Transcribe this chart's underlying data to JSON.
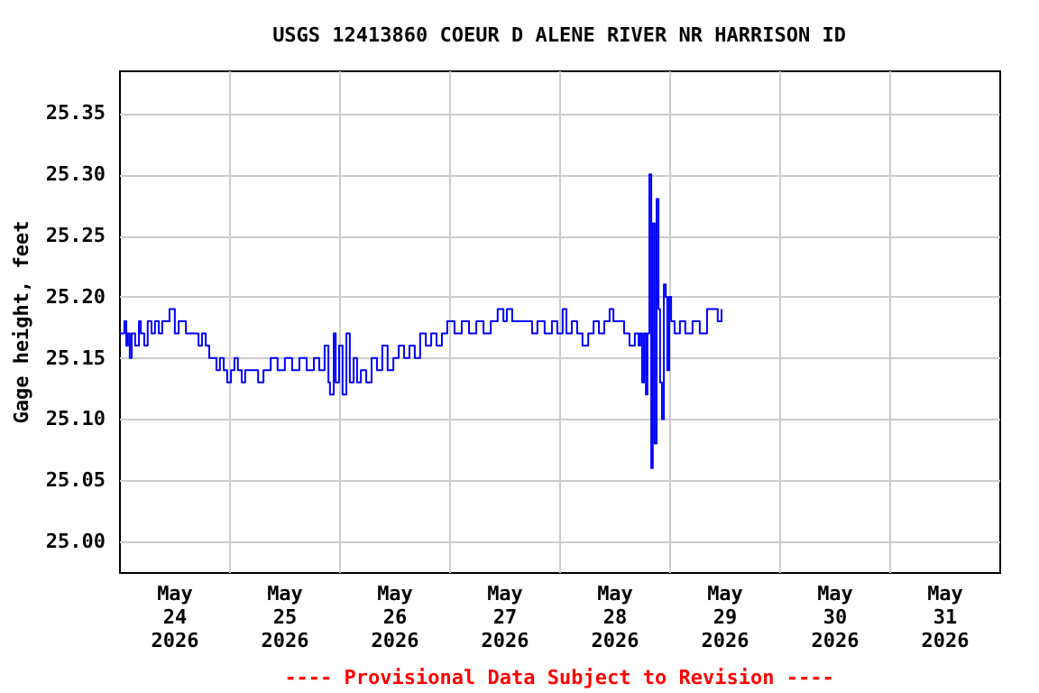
{
  "chart_data": {
    "type": "step",
    "title": "USGS 12413860 COEUR D ALENE RIVER NR HARRISON ID",
    "ylabel": "Gage height, feet",
    "annotations": [
      "---- Provisional Data Subject to Revision ----"
    ],
    "xlim": [
      "2026-05-24T00:00",
      "2026-06-01T00:00"
    ],
    "xticks": [
      {
        "value": "2026-05-24T12:00",
        "label": "May 24 2026"
      },
      {
        "value": "2026-05-25T00:00",
        "label": null
      },
      {
        "value": "2026-05-25T12:00",
        "label": "May 25 2026"
      },
      {
        "value": "2026-05-26T00:00",
        "label": null
      },
      {
        "value": "2026-05-26T12:00",
        "label": "May 26 2026"
      },
      {
        "value": "2026-05-27T00:00",
        "label": null
      },
      {
        "value": "2026-05-27T12:00",
        "label": "May 27 2026"
      },
      {
        "value": "2026-05-28T00:00",
        "label": null
      },
      {
        "value": "2026-05-28T12:00",
        "label": "May 28 2026"
      },
      {
        "value": "2026-05-29T00:00",
        "label": null
      },
      {
        "value": "2026-05-29T12:00",
        "label": "May 29 2026"
      },
      {
        "value": "2026-05-30T00:00",
        "label": null
      },
      {
        "value": "2026-05-30T12:00",
        "label": "May 30 2026"
      },
      {
        "value": "2026-05-31T00:00",
        "label": null
      },
      {
        "value": "2026-05-31T12:00",
        "label": "May 31 2026"
      }
    ],
    "ylim": [
      24.975,
      25.385
    ],
    "yticks": [
      {
        "value": 25,
        "label": "25.00"
      },
      {
        "value": 25.05,
        "label": "25.05"
      },
      {
        "value": 25.1,
        "label": "25.10"
      },
      {
        "value": 25.15,
        "label": "25.15"
      },
      {
        "value": 25.2,
        "label": "25.20"
      },
      {
        "value": 25.25,
        "label": "25.25"
      },
      {
        "value": 25.3,
        "label": "25.30"
      },
      {
        "value": 25.35,
        "label": "25.35"
      }
    ],
    "grid": true,
    "series": [
      {
        "color": "#0000ff",
        "x": [
          "2026-05-24T00:00",
          "2026-05-24T00:45",
          "2026-05-24T01:10",
          "2026-05-24T01:35",
          "2026-05-24T01:55",
          "2026-05-24T02:20",
          "2026-05-24T02:45",
          "2026-05-24T03:30",
          "2026-05-24T04:20",
          "2026-05-24T04:45",
          "2026-05-24T05:30",
          "2026-05-24T06:15",
          "2026-05-24T07:05",
          "2026-05-24T07:50",
          "2026-05-24T08:40",
          "2026-05-24T09:25",
          "2026-05-24T10:15",
          "2026-05-24T11:00",
          "2026-05-24T11:50",
          "2026-05-24T12:10",
          "2026-05-24T13:00",
          "2026-05-24T13:45",
          "2026-05-24T14:35",
          "2026-05-24T15:20",
          "2026-05-24T16:30",
          "2026-05-24T17:20",
          "2026-05-24T18:05",
          "2026-05-24T18:55",
          "2026-05-24T19:40",
          "2026-05-24T20:25",
          "2026-05-24T21:15",
          "2026-05-24T22:00",
          "2026-05-24T22:50",
          "2026-05-24T23:35",
          "2026-05-25T00:25",
          "2026-05-25T01:10",
          "2026-05-25T01:55",
          "2026-05-25T02:45",
          "2026-05-25T03:30",
          "2026-05-25T05:05",
          "2026-05-25T06:20",
          "2026-05-25T07:30",
          "2026-05-25T09:05",
          "2026-05-25T10:35",
          "2026-05-25T12:10",
          "2026-05-25T13:45",
          "2026-05-25T15:20",
          "2026-05-25T16:55",
          "2026-05-25T18:30",
          "2026-05-25T19:40",
          "2026-05-25T20:50",
          "2026-05-25T21:40",
          "2026-05-25T22:00",
          "2026-05-25T22:50",
          "2026-05-25T23:15",
          "2026-05-26T00:00",
          "2026-05-26T00:45",
          "2026-05-26T01:35",
          "2026-05-26T02:20",
          "2026-05-26T03:10",
          "2026-05-26T03:55",
          "2026-05-26T04:45",
          "2026-05-26T05:55",
          "2026-05-26T07:05",
          "2026-05-26T08:15",
          "2026-05-26T09:25",
          "2026-05-26T10:35",
          "2026-05-26T11:50",
          "2026-05-26T13:00",
          "2026-05-26T14:10",
          "2026-05-26T15:20",
          "2026-05-26T16:30",
          "2026-05-26T17:40",
          "2026-05-26T18:55",
          "2026-05-26T20:05",
          "2026-05-26T21:15",
          "2026-05-26T22:25",
          "2026-05-26T23:35",
          "2026-05-27T01:10",
          "2026-05-27T02:45",
          "2026-05-27T04:20",
          "2026-05-27T05:55",
          "2026-05-27T07:30",
          "2026-05-27T09:05",
          "2026-05-27T10:35",
          "2026-05-27T11:50",
          "2026-05-27T12:35",
          "2026-05-27T13:45",
          "2026-05-27T15:20",
          "2026-05-27T16:55",
          "2026-05-27T18:05",
          "2026-05-27T19:15",
          "2026-05-27T20:50",
          "2026-05-27T22:25",
          "2026-05-27T23:35",
          "2026-05-28T00:45",
          "2026-05-28T01:35",
          "2026-05-28T02:45",
          "2026-05-28T03:55",
          "2026-05-28T05:05",
          "2026-05-28T06:20",
          "2026-05-28T07:30",
          "2026-05-28T08:40",
          "2026-05-28T09:50",
          "2026-05-28T11:00",
          "2026-05-28T11:50",
          "2026-05-28T13:00",
          "2026-05-28T14:10",
          "2026-05-28T15:20",
          "2026-05-28T16:30",
          "2026-05-28T17:20",
          "2026-05-28T17:40",
          "2026-05-28T18:05",
          "2026-05-28T18:30",
          "2026-05-28T18:55",
          "2026-05-28T19:15",
          "2026-05-28T19:40",
          "2026-05-28T20:05",
          "2026-05-28T20:25",
          "2026-05-28T20:50",
          "2026-05-28T21:15",
          "2026-05-28T21:40",
          "2026-05-28T22:00",
          "2026-05-28T22:25",
          "2026-05-28T22:50",
          "2026-05-28T23:15",
          "2026-05-28T23:35",
          "2026-05-29T00:00",
          "2026-05-29T00:25",
          "2026-05-29T01:10",
          "2026-05-29T02:20",
          "2026-05-29T03:30",
          "2026-05-29T05:05",
          "2026-05-29T06:40",
          "2026-05-29T08:15",
          "2026-05-29T09:50",
          "2026-05-29T10:35",
          "2026-05-29T11:25"
        ],
        "values": [
          25.17,
          25.17,
          25.18,
          25.16,
          25.17,
          25.15,
          25.17,
          25.16,
          25.18,
          25.17,
          25.16,
          25.18,
          25.17,
          25.18,
          25.17,
          25.18,
          25.18,
          25.19,
          25.19,
          25.17,
          25.18,
          25.18,
          25.17,
          25.17,
          25.17,
          25.16,
          25.17,
          25.16,
          25.15,
          25.15,
          25.14,
          25.15,
          25.14,
          25.13,
          25.14,
          25.15,
          25.14,
          25.13,
          25.14,
          25.14,
          25.13,
          25.14,
          25.15,
          25.14,
          25.15,
          25.14,
          25.15,
          25.14,
          25.15,
          25.14,
          25.16,
          25.13,
          25.12,
          25.17,
          25.13,
          25.16,
          25.12,
          25.17,
          25.13,
          25.15,
          25.13,
          25.14,
          25.13,
          25.15,
          25.14,
          25.16,
          25.14,
          25.15,
          25.16,
          25.15,
          25.16,
          25.15,
          25.17,
          25.16,
          25.17,
          25.16,
          25.17,
          25.18,
          25.17,
          25.18,
          25.17,
          25.18,
          25.17,
          25.18,
          25.19,
          25.18,
          25.19,
          25.18,
          25.18,
          25.18,
          25.17,
          25.18,
          25.17,
          25.18,
          25.17,
          25.19,
          25.17,
          25.18,
          25.17,
          25.16,
          25.17,
          25.18,
          25.17,
          25.18,
          25.19,
          25.18,
          25.18,
          25.17,
          25.16,
          25.17,
          25.16,
          25.17,
          25.13,
          25.17,
          25.12,
          25.17,
          25.3,
          25.06,
          25.26,
          25.08,
          25.28,
          25.19,
          25.13,
          25.1,
          25.21,
          25.2,
          25.14,
          25.2,
          25.18,
          25.17,
          25.18,
          25.17,
          25.18,
          25.17,
          25.19,
          25.19,
          25.18,
          25.19
        ]
      }
    ]
  }
}
